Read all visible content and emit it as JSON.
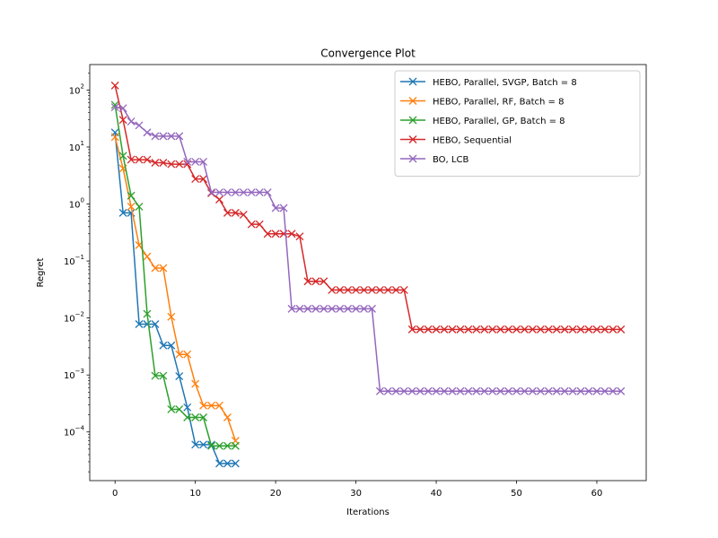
{
  "chart_data": {
    "type": "line",
    "title": "Convergence Plot",
    "xlabel": "Iterations",
    "ylabel": "Regret",
    "yscale": "log",
    "xlim": [
      -3.15,
      66.15
    ],
    "ylim": [
      1.4e-05,
      280
    ],
    "xticks": [
      0,
      10,
      20,
      30,
      40,
      50,
      60
    ],
    "yticks": [
      {
        "value": 0.0001,
        "base": "10",
        "exp": "−4"
      },
      {
        "value": 0.001,
        "base": "10",
        "exp": "−3"
      },
      {
        "value": 0.01,
        "base": "10",
        "exp": "−2"
      },
      {
        "value": 0.1,
        "base": "10",
        "exp": "−1"
      },
      {
        "value": 1,
        "base": "10",
        "exp": "0"
      },
      {
        "value": 10,
        "base": "10",
        "exp": "1"
      },
      {
        "value": 100,
        "base": "10",
        "exp": "2"
      }
    ],
    "grid": false,
    "legend_position": "top-right",
    "marker": "x",
    "series": [
      {
        "name": "HEBO, Parallel, SVGP, Batch = 8",
        "color": "#1f77b4",
        "x": [
          0,
          1,
          2,
          3,
          4,
          5,
          6,
          7,
          8,
          9,
          10,
          11,
          12,
          13,
          14,
          15
        ],
        "y": [
          18,
          0.7,
          0.7,
          0.0078,
          0.0078,
          0.0078,
          0.0033,
          0.0033,
          0.00095,
          0.00027,
          6e-05,
          6e-05,
          6e-05,
          2.8e-05,
          2.8e-05,
          2.8e-05
        ]
      },
      {
        "name": "HEBO, Parallel, RF, Batch = 8",
        "color": "#ff7f0e",
        "x": [
          0,
          1,
          2,
          3,
          4,
          5,
          6,
          7,
          8,
          9,
          10,
          11,
          12,
          13,
          14,
          15
        ],
        "y": [
          15,
          4.2,
          0.9,
          0.19,
          0.12,
          0.075,
          0.075,
          0.0105,
          0.0023,
          0.0023,
          0.0007,
          0.00029,
          0.00029,
          0.00029,
          0.00018,
          7e-05
        ]
      },
      {
        "name": "HEBO, Parallel, GP, Batch = 8",
        "color": "#2ca02c",
        "x": [
          0,
          1,
          2,
          3,
          4,
          5,
          6,
          7,
          8,
          9,
          10,
          11,
          12,
          13,
          14,
          15
        ],
        "y": [
          55,
          7,
          1.4,
          0.9,
          0.0118,
          0.00097,
          0.00097,
          0.00025,
          0.00025,
          0.00018,
          0.00018,
          0.00018,
          5.7e-05,
          5.7e-05,
          5.7e-05,
          5.7e-05
        ]
      },
      {
        "name": "HEBO, Sequential",
        "color": "#d62728",
        "x": [
          0,
          1,
          2,
          3,
          4,
          5,
          6,
          7,
          8,
          9,
          10,
          11,
          12,
          13,
          14,
          15,
          16,
          17,
          18,
          19,
          20,
          21,
          22,
          23,
          24,
          25,
          26,
          27,
          28,
          29,
          30,
          31,
          32,
          33,
          34,
          35,
          36,
          37,
          38,
          39,
          40,
          41,
          42,
          43,
          44,
          45,
          46,
          47,
          48,
          49,
          50,
          51,
          52,
          53,
          54,
          55,
          56,
          57,
          58,
          59,
          60,
          61,
          62,
          63
        ],
        "y": [
          120,
          30,
          6,
          6,
          6,
          5.3,
          5.3,
          5,
          5,
          5,
          2.75,
          2.75,
          1.55,
          1.2,
          0.7,
          0.7,
          0.65,
          0.44,
          0.44,
          0.3,
          0.3,
          0.3,
          0.3,
          0.27,
          0.044,
          0.044,
          0.044,
          0.031,
          0.031,
          0.031,
          0.031,
          0.031,
          0.031,
          0.031,
          0.031,
          0.031,
          0.031,
          0.0063,
          0.0063,
          0.0063,
          0.0063,
          0.0063,
          0.0063,
          0.0063,
          0.0063,
          0.0063,
          0.0063,
          0.0063,
          0.0063,
          0.0063,
          0.0063,
          0.0063,
          0.0063,
          0.0063,
          0.0063,
          0.0063,
          0.0063,
          0.0063,
          0.0063,
          0.0063,
          0.0063,
          0.0063,
          0.0063,
          0.0063
        ]
      },
      {
        "name": "BO, LCB",
        "color": "#9467bd",
        "x": [
          0,
          1,
          2,
          3,
          4,
          5,
          6,
          7,
          8,
          9,
          10,
          11,
          12,
          13,
          14,
          15,
          16,
          17,
          18,
          19,
          20,
          21,
          22,
          23,
          24,
          25,
          26,
          27,
          28,
          29,
          30,
          31,
          32,
          33,
          34,
          35,
          36,
          37,
          38,
          39,
          40,
          41,
          42,
          43,
          44,
          45,
          46,
          47,
          48,
          49,
          50,
          51,
          52,
          53,
          54,
          55,
          56,
          57,
          58,
          59,
          60,
          61,
          62,
          63
        ],
        "y": [
          50,
          48,
          28,
          24,
          18,
          15.5,
          15.5,
          15.5,
          15.5,
          5.5,
          5.5,
          5.5,
          1.6,
          1.6,
          1.6,
          1.6,
          1.6,
          1.6,
          1.6,
          1.6,
          0.85,
          0.85,
          0.0145,
          0.0145,
          0.0145,
          0.0145,
          0.0145,
          0.0145,
          0.0145,
          0.0145,
          0.0145,
          0.0145,
          0.0145,
          0.00052,
          0.00052,
          0.00052,
          0.00052,
          0.00052,
          0.00052,
          0.00052,
          0.00052,
          0.00052,
          0.00052,
          0.00052,
          0.00052,
          0.00052,
          0.00052,
          0.00052,
          0.00052,
          0.00052,
          0.00052,
          0.00052,
          0.00052,
          0.00052,
          0.00052,
          0.00052,
          0.00052,
          0.00052,
          0.00052,
          0.00052,
          0.00052,
          0.00052,
          0.00052,
          0.00052
        ]
      }
    ]
  }
}
